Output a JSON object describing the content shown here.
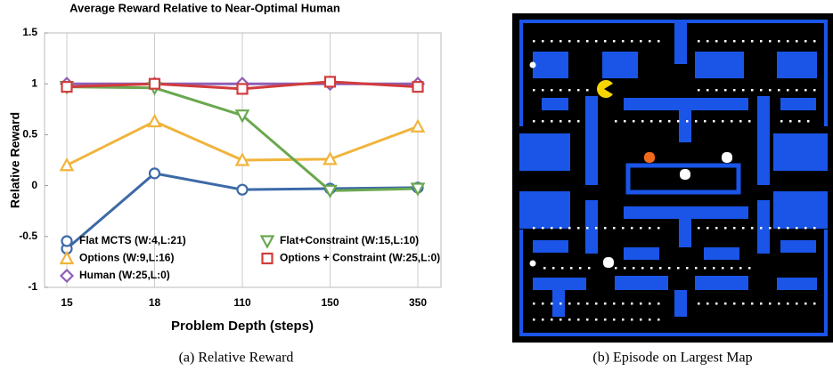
{
  "chart_data": {
    "type": "line",
    "title": "Average Reward Relative to Near-Optimal Human",
    "x_label": "Problem Depth (steps)",
    "y_label": "Relative Reward",
    "categories": [
      "15",
      "18",
      "110",
      "150",
      "350"
    ],
    "ylim": [
      -1,
      1.5
    ],
    "yticks": [
      -1,
      -0.5,
      0,
      0.5,
      1,
      1.5
    ],
    "grid": true,
    "series": [
      {
        "name": "Flat MCTS (W:4,L:21)",
        "color": "#3d6aa6",
        "marker": "circle",
        "values": [
          -0.62,
          0.12,
          -0.04,
          -0.03,
          -0.02
        ]
      },
      {
        "name": "Options (W:9,L:16)",
        "color": "#f0b43c",
        "marker": "triangle-up",
        "values": [
          0.2,
          0.63,
          0.25,
          0.26,
          0.58
        ]
      },
      {
        "name": "Human (W:25,L:0)",
        "color": "#8e5fb5",
        "marker": "diamond",
        "values": [
          1,
          1,
          1,
          1,
          1
        ]
      },
      {
        "name": "Flat+Constraint (W:15,L:10)",
        "color": "#6aa84f",
        "marker": "triangle-down",
        "values": [
          0.97,
          0.96,
          0.69,
          -0.05,
          -0.03
        ]
      },
      {
        "name": "Options + Constraint (W:25,L:0)",
        "color": "#d23c3c",
        "marker": "square",
        "values": [
          0.97,
          1.0,
          0.95,
          1.02,
          0.97
        ]
      }
    ]
  },
  "captions": [
    "(a) Relative Reward",
    "(b) Episode on Largest Map"
  ]
}
